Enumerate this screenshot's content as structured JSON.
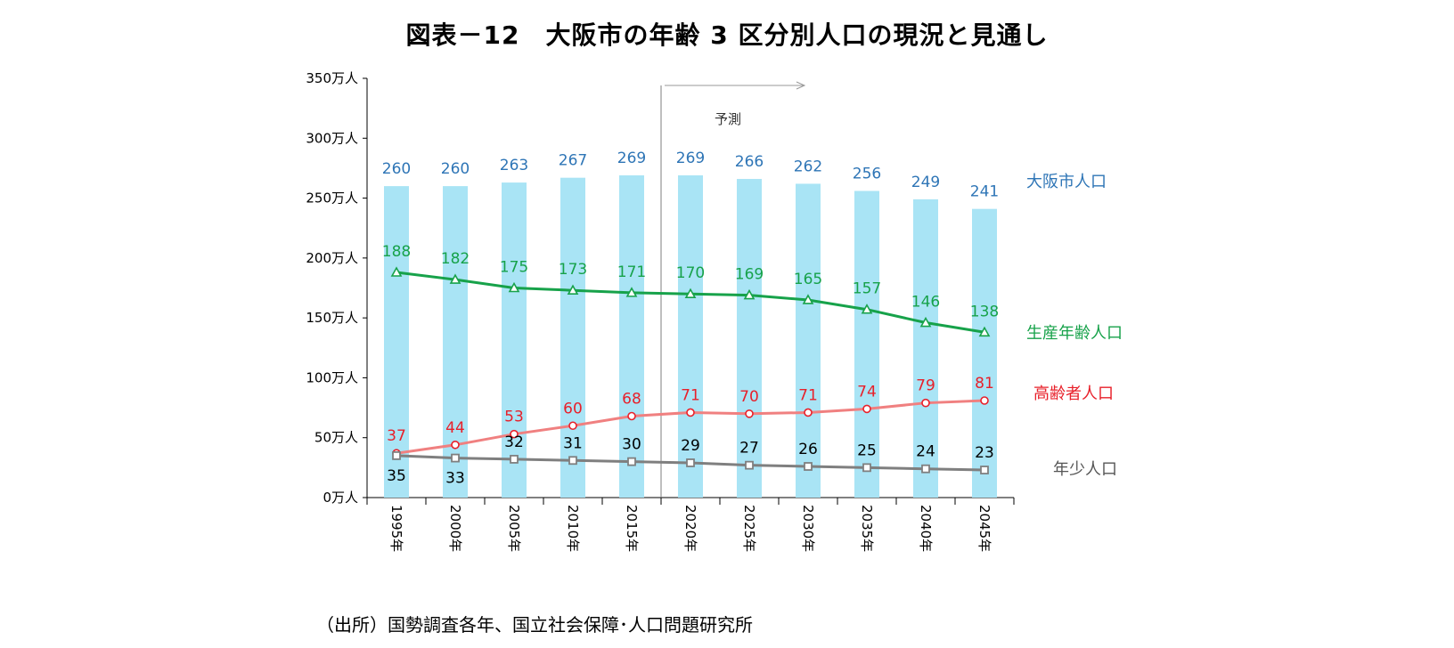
{
  "title": "図表－12　大阪市の年齢 3 区分別人口の現況と見通し",
  "source": "（出所）国勢調査各年、国立社会保障･人口問題研究所",
  "chart_data": {
    "type": "bar",
    "title": "図表－12　大阪市の年齢 3 区分別人口の現況と見通し",
    "xlabel": "",
    "ylabel": "",
    "ylim": [
      0,
      350
    ],
    "y_ticks": [
      0,
      50,
      100,
      150,
      200,
      250,
      300,
      350
    ],
    "y_tick_labels": [
      "0万人",
      "50万人",
      "100万人",
      "150万人",
      "200万人",
      "250万人",
      "300万人",
      "350万人"
    ],
    "categories": [
      "1995年",
      "2000年",
      "2005年",
      "2010年",
      "2015年",
      "2020年",
      "2025年",
      "2030年",
      "2035年",
      "2040年",
      "2045年"
    ],
    "forecast": {
      "label": "予測",
      "start_category": "2020年"
    },
    "series": [
      {
        "name": "大阪市人口",
        "type": "bar",
        "color": "#A9E4F5",
        "label_color": "#2E75B6",
        "values": [
          260,
          260,
          263,
          267,
          269,
          269,
          266,
          262,
          256,
          249,
          241
        ]
      },
      {
        "name": "生産年齢人口",
        "type": "line",
        "marker": "triangle",
        "color": "#17A24A",
        "label_color": "#17A24A",
        "values": [
          188,
          182,
          175,
          173,
          171,
          170,
          169,
          165,
          157,
          146,
          138
        ]
      },
      {
        "name": "高齢者人口",
        "type": "line",
        "marker": "circle",
        "color": "#F08080",
        "marker_color": "#E8202A",
        "label_color": "#E8202A",
        "values": [
          37,
          44,
          53,
          60,
          68,
          71,
          70,
          71,
          74,
          79,
          81
        ]
      },
      {
        "name": "年少人口",
        "type": "line",
        "marker": "square",
        "color": "#7F7F7F",
        "label_color": "#000000",
        "values": [
          35,
          33,
          32,
          31,
          30,
          29,
          27,
          26,
          25,
          24,
          23
        ]
      }
    ]
  }
}
